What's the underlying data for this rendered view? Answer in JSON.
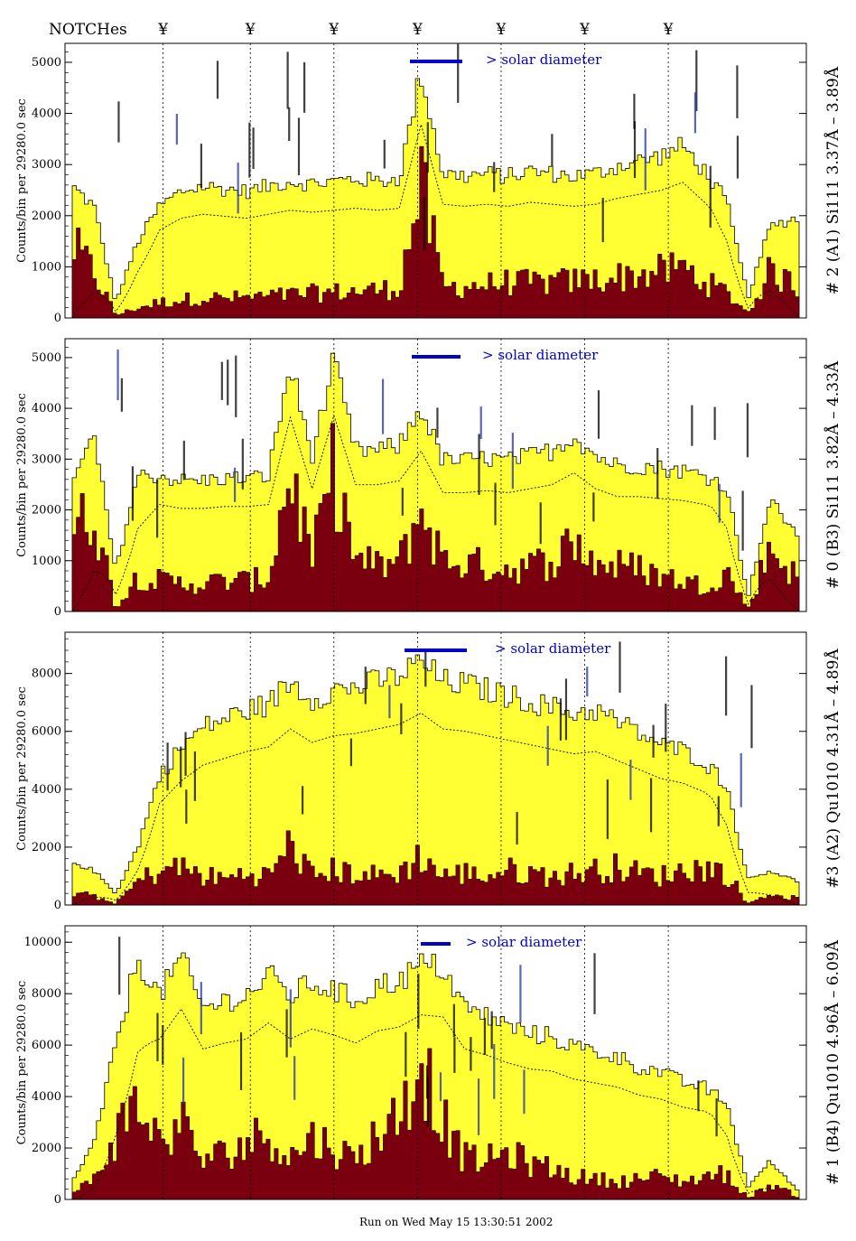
{
  "header": {
    "notches_label": "NOTCHes",
    "notch_glyph": "¥"
  },
  "footer": {
    "run_text": "Run on Wed May 15 13:30:51 2002"
  },
  "colors": {
    "total_fill": "#ffff33",
    "dark_fill": "#7a0010",
    "solar_bar": "#0000cc",
    "line_label_blue": "#2233aa"
  },
  "chart_data": [
    {
      "type": "area",
      "ylabel": "Counts/bin per  29280.0 sec",
      "right_label": "# 2 (A1) Si111  3.37Å – 3.89Å",
      "solar_label": "> solar diameter",
      "yticks": [
        0,
        1000,
        2000,
        3000,
        4000,
        5000
      ],
      "ylim": [
        0,
        5300
      ],
      "grid": false,
      "series": [
        {
          "x": [
            0,
            0.03,
            0.06,
            0.09,
            0.12,
            0.15,
            0.18,
            0.21,
            0.24,
            0.27,
            0.3,
            0.33,
            0.36,
            0.39,
            0.42,
            0.45,
            0.48,
            0.51,
            0.54,
            0.57,
            0.6,
            0.63,
            0.66,
            0.69,
            0.72,
            0.75,
            0.78,
            0.81,
            0.84,
            0.87,
            0.9,
            0.93,
            0.96,
            1.0
          ],
          "y": [
            2600,
            2200,
            300,
            1500,
            2200,
            2500,
            2600,
            2550,
            2500,
            2600,
            2700,
            2650,
            2700,
            2750,
            2700,
            2750,
            4850,
            2850,
            2800,
            2850,
            2800,
            2900,
            2850,
            2800,
            2850,
            3000,
            3100,
            3200,
            3400,
            2900,
            2300,
            400,
            1800,
            2000
          ]
        },
        {
          "x": [
            0,
            0.03,
            0.06,
            0.09,
            0.12,
            0.15,
            0.18,
            0.21,
            0.24,
            0.27,
            0.3,
            0.33,
            0.36,
            0.39,
            0.42,
            0.45,
            0.48,
            0.51,
            0.54,
            0.57,
            0.6,
            0.63,
            0.66,
            0.69,
            0.72,
            0.75,
            0.78,
            0.81,
            0.84,
            0.87,
            0.9,
            0.93,
            0.96,
            1.0
          ],
          "y": [
            1400,
            900,
            50,
            200,
            300,
            350,
            400,
            380,
            400,
            420,
            450,
            480,
            500,
            520,
            550,
            580,
            2600,
            600,
            620,
            650,
            700,
            680,
            700,
            720,
            750,
            800,
            850,
            900,
            1000,
            700,
            500,
            100,
            900,
            600
          ]
        }
      ],
      "notches_x": [
        0.125,
        0.245,
        0.36,
        0.475,
        0.59,
        0.705,
        0.82
      ]
    },
    {
      "type": "area",
      "ylabel": "Counts/bin per  29280.0 sec",
      "right_label": "# 0 (B3) Si111  3.82Å – 4.33Å",
      "solar_label": "> solar diameter",
      "yticks": [
        0,
        1000,
        2000,
        3000,
        4000,
        5000
      ],
      "ylim": [
        0,
        5300
      ],
      "grid": false,
      "series": [
        {
          "x": [
            0,
            0.03,
            0.06,
            0.09,
            0.12,
            0.15,
            0.18,
            0.21,
            0.24,
            0.27,
            0.3,
            0.33,
            0.36,
            0.39,
            0.42,
            0.45,
            0.48,
            0.51,
            0.54,
            0.57,
            0.6,
            0.63,
            0.66,
            0.69,
            0.72,
            0.75,
            0.78,
            0.81,
            0.84,
            0.87,
            0.9,
            0.93,
            0.96,
            1.0
          ],
          "y": [
            2500,
            3500,
            800,
            2700,
            2700,
            2600,
            2600,
            2650,
            2650,
            2700,
            4900,
            3100,
            4950,
            3200,
            3200,
            3300,
            4050,
            3000,
            3000,
            3050,
            3000,
            3100,
            3200,
            3500,
            3100,
            2900,
            2900,
            2850,
            2800,
            2700,
            2500,
            300,
            2200,
            1500
          ]
        },
        {
          "x": [
            0,
            0.03,
            0.06,
            0.09,
            0.12,
            0.15,
            0.18,
            0.21,
            0.24,
            0.27,
            0.3,
            0.33,
            0.36,
            0.39,
            0.42,
            0.45,
            0.48,
            0.51,
            0.54,
            0.57,
            0.6,
            0.63,
            0.66,
            0.69,
            0.72,
            0.75,
            0.78,
            0.81,
            0.84,
            0.87,
            0.9,
            0.93,
            0.96,
            1.0
          ],
          "y": [
            1500,
            2000,
            50,
            700,
            600,
            550,
            550,
            600,
            600,
            650,
            2800,
            1000,
            2800,
            1000,
            900,
            950,
            2000,
            1000,
            950,
            900,
            850,
            900,
            1000,
            1400,
            950,
            900,
            850,
            700,
            600,
            500,
            800,
            50,
            1300,
            600
          ]
        }
      ],
      "notches_x": [
        0.125,
        0.245,
        0.36,
        0.475,
        0.59,
        0.705,
        0.82
      ]
    },
    {
      "type": "area",
      "ylabel": "Counts/bin per  29280.0 sec",
      "right_label": "#3 (A2) Qu1010  4.31Å – 4.89Å",
      "solar_label": "> solar diameter",
      "yticks": [
        0,
        2000,
        4000,
        6000,
        8000
      ],
      "ylim": [
        0,
        9300
      ],
      "grid": false,
      "series": [
        {
          "x": [
            0,
            0.03,
            0.06,
            0.09,
            0.12,
            0.15,
            0.18,
            0.21,
            0.24,
            0.27,
            0.3,
            0.33,
            0.36,
            0.39,
            0.42,
            0.45,
            0.48,
            0.51,
            0.54,
            0.57,
            0.6,
            0.63,
            0.66,
            0.69,
            0.72,
            0.75,
            0.78,
            0.81,
            0.84,
            0.87,
            0.9,
            0.93,
            0.96,
            1.0
          ],
          "y": [
            1500,
            1200,
            400,
            2000,
            4500,
            5500,
            6200,
            6500,
            6800,
            7000,
            7800,
            7200,
            7500,
            7600,
            7800,
            8000,
            8500,
            7800,
            7700,
            7500,
            7300,
            7100,
            6900,
            6700,
            6800,
            6400,
            6000,
            5600,
            5400,
            5000,
            4200,
            900,
            1200,
            800
          ]
        },
        {
          "x": [
            0,
            0.03,
            0.06,
            0.09,
            0.12,
            0.15,
            0.18,
            0.21,
            0.24,
            0.27,
            0.3,
            0.33,
            0.36,
            0.39,
            0.42,
            0.45,
            0.48,
            0.51,
            0.54,
            0.57,
            0.6,
            0.63,
            0.66,
            0.69,
            0.72,
            0.75,
            0.78,
            0.81,
            0.84,
            0.87,
            0.9,
            0.93,
            0.96,
            1.0
          ],
          "y": [
            400,
            300,
            50,
            800,
            1200,
            1300,
            1000,
            900,
            1100,
            1000,
            2100,
            1000,
            1200,
            1100,
            1000,
            1100,
            1700,
            1000,
            1100,
            1000,
            1200,
            1100,
            1000,
            1100,
            1200,
            1300,
            1100,
            1000,
            1200,
            1300,
            1100,
            50,
            400,
            200
          ]
        }
      ],
      "notches_x": [
        0.125,
        0.245,
        0.36,
        0.475,
        0.59,
        0.705,
        0.82
      ]
    },
    {
      "type": "area",
      "ylabel": "Counts/bin per  29280.0 sec",
      "right_label": "# 1 (B4) Qu1010 4.96Å – 6.09Å",
      "solar_label": "> solar diameter",
      "yticks": [
        0,
        2000,
        4000,
        6000,
        8000,
        10000
      ],
      "ylim": [
        0,
        10500
      ],
      "grid": false,
      "series": [
        {
          "x": [
            0,
            0.03,
            0.06,
            0.09,
            0.12,
            0.15,
            0.18,
            0.21,
            0.24,
            0.27,
            0.3,
            0.33,
            0.36,
            0.39,
            0.42,
            0.45,
            0.48,
            0.51,
            0.54,
            0.57,
            0.6,
            0.63,
            0.66,
            0.69,
            0.72,
            0.75,
            0.78,
            0.81,
            0.84,
            0.87,
            0.9,
            0.93,
            0.96,
            1.0
          ],
          "y": [
            700,
            2200,
            6000,
            9500,
            8000,
            9500,
            7500,
            7800,
            8000,
            8800,
            8000,
            8500,
            8200,
            7800,
            8400,
            8600,
            9200,
            9100,
            7500,
            7200,
            6800,
            6500,
            6400,
            6000,
            5800,
            5600,
            5200,
            5000,
            4600,
            4400,
            3800,
            500,
            1500,
            300
          ]
        },
        {
          "x": [
            0,
            0.03,
            0.06,
            0.09,
            0.12,
            0.15,
            0.18,
            0.21,
            0.24,
            0.27,
            0.3,
            0.33,
            0.36,
            0.39,
            0.42,
            0.45,
            0.48,
            0.51,
            0.54,
            0.57,
            0.6,
            0.63,
            0.66,
            0.69,
            0.72,
            0.75,
            0.78,
            0.81,
            0.84,
            0.87,
            0.9,
            0.93,
            0.96,
            1.0
          ],
          "y": [
            200,
            800,
            2500,
            3800,
            2200,
            3000,
            1500,
            1800,
            2200,
            2600,
            1600,
            2400,
            2000,
            1500,
            2600,
            3200,
            5500,
            3000,
            1600,
            1500,
            1800,
            1400,
            1200,
            900,
            800,
            700,
            800,
            900,
            700,
            900,
            1000,
            50,
            600,
            100
          ]
        }
      ],
      "notches_x": [
        0.125,
        0.245,
        0.36,
        0.475,
        0.59,
        0.705,
        0.82
      ]
    }
  ]
}
